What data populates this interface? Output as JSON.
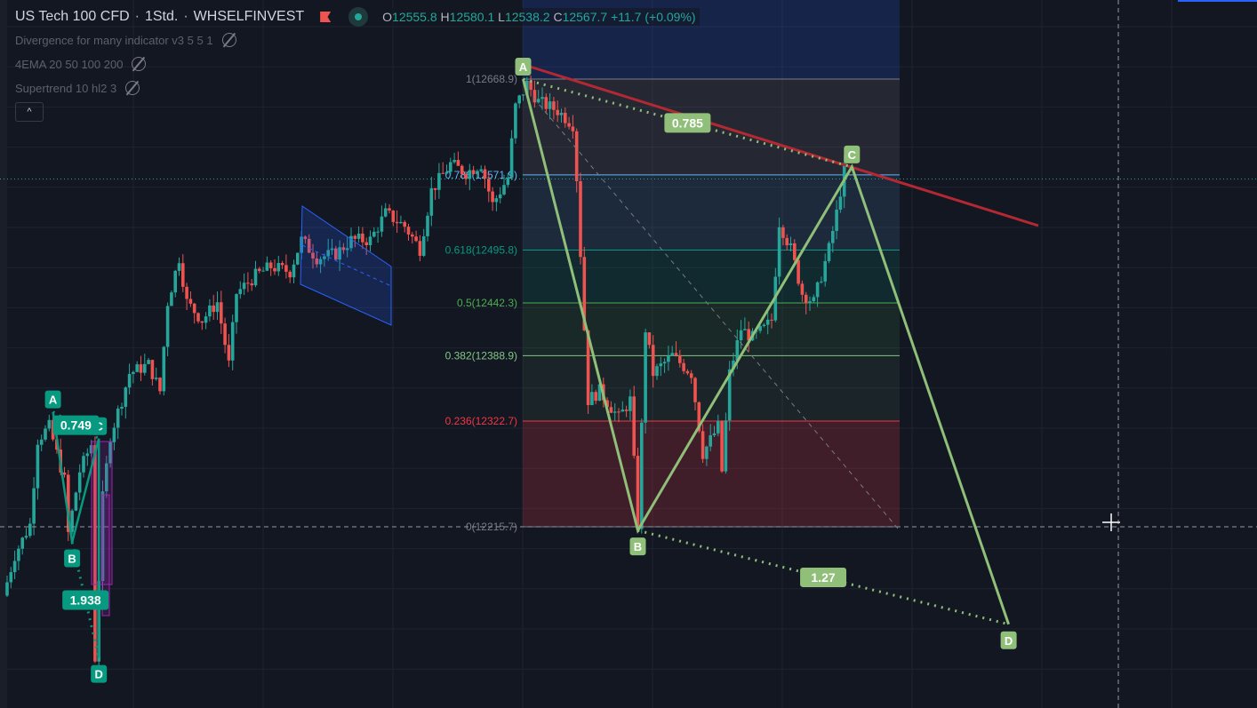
{
  "header": {
    "symbol": "US Tech 100 CFD",
    "interval": "1Std.",
    "exchange": "WHSELFINVEST",
    "separator": "·",
    "open_label": "O",
    "open": "12555.8",
    "high_label": "H",
    "high": "12580.1",
    "low_label": "L",
    "low": "12538.2",
    "close_label": "C",
    "close": "12567.7",
    "change": "+11.7 (+0.09%)"
  },
  "indicators": [
    {
      "name": "Divergence for many indicator v3 5 5 1",
      "icon": "eye-hidden-icon"
    },
    {
      "name": "4EMA 20 50 100 200",
      "icon": "eye-hidden-icon"
    },
    {
      "name": "Supertrend 10 hl2 3",
      "icon": "eye-hidden-icon"
    }
  ],
  "collapse_label": "^",
  "colors": {
    "background": "#131722",
    "up": "#26a69a",
    "down": "#ef5350",
    "pattern_big": "#8fbf78",
    "pattern_small": "#089981",
    "trendline": "#b22833"
  },
  "chart_data": {
    "type": "candlestick",
    "title": "US Tech 100 CFD · 1Std. · WHSELFINVEST",
    "price_path_note_units": "bar index, price",
    "price_path": [
      [
        0,
        12146
      ],
      [
        3,
        12187
      ],
      [
        7,
        12218
      ],
      [
        9,
        12304
      ],
      [
        12,
        12317
      ],
      [
        16,
        12263
      ],
      [
        17,
        12209
      ],
      [
        20,
        12272
      ],
      [
        23,
        12299
      ],
      [
        24,
        12083
      ],
      [
        26,
        12245
      ],
      [
        28,
        12308
      ],
      [
        31,
        12344
      ],
      [
        33,
        12371
      ],
      [
        38,
        12380
      ],
      [
        41,
        12353
      ],
      [
        43,
        12443
      ],
      [
        46,
        12488
      ],
      [
        48,
        12443
      ],
      [
        52,
        12425
      ],
      [
        56,
        12443
      ],
      [
        59,
        12380
      ],
      [
        61,
        12452
      ],
      [
        66,
        12470
      ],
      [
        70,
        12479
      ],
      [
        75,
        12474
      ],
      [
        78,
        12506
      ],
      [
        82,
        12488
      ],
      [
        87,
        12492
      ],
      [
        91,
        12506
      ],
      [
        96,
        12506
      ],
      [
        100,
        12533
      ],
      [
        105,
        12520
      ],
      [
        109,
        12497
      ],
      [
        112,
        12556
      ],
      [
        117,
        12583
      ],
      [
        121,
        12574
      ],
      [
        125,
        12583
      ],
      [
        128,
        12542
      ],
      [
        132,
        12569
      ],
      [
        134,
        12641
      ],
      [
        137,
        12664
      ],
      [
        140,
        12646
      ],
      [
        145,
        12637
      ],
      [
        149,
        12623
      ],
      [
        150,
        12569
      ],
      [
        152,
        12416
      ],
      [
        153,
        12344
      ],
      [
        156,
        12353
      ],
      [
        161,
        12326
      ],
      [
        164,
        12344
      ],
      [
        166,
        12218
      ],
      [
        168,
        12416
      ],
      [
        170,
        12371
      ],
      [
        175,
        12389
      ],
      [
        180,
        12371
      ],
      [
        183,
        12290
      ],
      [
        187,
        12317
      ],
      [
        188,
        12272
      ],
      [
        190,
        12371
      ],
      [
        193,
        12416
      ],
      [
        196,
        12407
      ],
      [
        199,
        12416
      ],
      [
        201,
        12425
      ],
      [
        203,
        12524
      ],
      [
        206,
        12497
      ],
      [
        209,
        12452
      ],
      [
        212,
        12443
      ],
      [
        216,
        12497
      ],
      [
        218,
        12533
      ],
      [
        220,
        12578
      ]
    ],
    "current_price": 12567.7,
    "fibonacci": [
      {
        "ratio": "1",
        "price": 12668.9,
        "label": "1(12668.9)",
        "color": "#787b86"
      },
      {
        "ratio": "0.786",
        "price": 12571.9,
        "label": "0.786(12571.9)",
        "color": "#64b5f6"
      },
      {
        "ratio": "0.618",
        "price": 12495.8,
        "label": "0.618(12495.8)",
        "color": "#089981"
      },
      {
        "ratio": "0.5",
        "price": 12442.3,
        "label": "0.5(12442.3)",
        "color": "#4caf50"
      },
      {
        "ratio": "0.382",
        "price": 12388.9,
        "label": "0.382(12388.9)",
        "color": "#81c784"
      },
      {
        "ratio": "0.236",
        "price": 12322.7,
        "label": "0.236(12322.7)",
        "color": "#f23645"
      },
      {
        "ratio": "0",
        "price": 12215.7,
        "label": "0(12215.7)",
        "color": "#787b86"
      }
    ],
    "pattern_big": {
      "points": [
        {
          "label": "A",
          "bar": 135,
          "price": 12668.9
        },
        {
          "label": "B",
          "bar": 165,
          "price": 12212
        },
        {
          "label": "C",
          "bar": 221,
          "price": 12580
        },
        {
          "label": "D",
          "bar": 262,
          "price": 12117
        }
      ],
      "ratios": [
        "0.785",
        "1.27"
      ]
    },
    "pattern_small": {
      "points": [
        {
          "label": "A",
          "bar": 12,
          "price": 12332
        },
        {
          "label": "B",
          "bar": 17,
          "price": 12200
        },
        {
          "label": "C",
          "bar": 24,
          "price": 12305
        },
        {
          "label": "D",
          "bar": 24,
          "price": 12083
        }
      ],
      "ratios": [
        "0.749",
        "1.938"
      ]
    }
  }
}
